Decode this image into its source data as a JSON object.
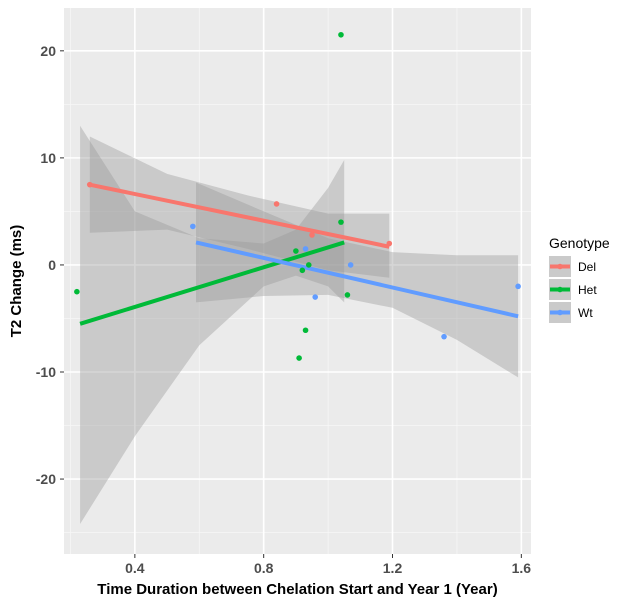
{
  "chart_data": {
    "type": "scatter",
    "title": "",
    "xlabel": "Time Duration between Chelation Start and Year 1 (Year)",
    "ylabel": "T2 Change (ms)",
    "xlim": [
      0.18,
      1.63
    ],
    "ylim": [
      -27,
      24
    ],
    "x_ticks": [
      0.4,
      0.8,
      1.2,
      1.6
    ],
    "x_tick_labels": [
      "0.4",
      "0.8",
      "1.2",
      "1.6"
    ],
    "y_ticks": [
      -20,
      -10,
      0,
      10,
      20
    ],
    "y_tick_labels": [
      "-20",
      "-10",
      "0",
      "10",
      "20"
    ],
    "grid": true,
    "legend": {
      "title": "Genotype",
      "position": "right"
    },
    "series": [
      {
        "name": "Del",
        "color": "#F8766D",
        "points": [
          [
            0.26,
            7.5
          ],
          [
            0.84,
            5.7
          ],
          [
            0.95,
            2.8
          ],
          [
            1.19,
            2.0
          ]
        ],
        "fit": {
          "x": [
            0.26,
            1.19
          ],
          "y": [
            7.5,
            1.7
          ]
        },
        "band": {
          "x": [
            0.26,
            0.5,
            0.75,
            1.0,
            1.19
          ],
          "lower": [
            3.0,
            3.3,
            1.5,
            -0.5,
            -1.2
          ],
          "upper": [
            12.0,
            8.5,
            6.5,
            4.8,
            4.8
          ]
        }
      },
      {
        "name": "Het",
        "color": "#00BA38",
        "points": [
          [
            0.22,
            -2.5
          ],
          [
            0.9,
            1.3
          ],
          [
            0.91,
            -8.7
          ],
          [
            0.92,
            -0.5
          ],
          [
            0.93,
            -6.1
          ],
          [
            0.94,
            0.0
          ],
          [
            1.04,
            21.5
          ],
          [
            1.04,
            4.0
          ],
          [
            1.06,
            -2.8
          ]
        ],
        "fit": {
          "x": [
            0.23,
            1.05
          ],
          "y": [
            -5.5,
            2.1
          ]
        },
        "band": {
          "x": [
            0.23,
            0.4,
            0.6,
            0.8,
            0.9,
            1.0,
            1.05
          ],
          "lower": [
            -24.2,
            -16.0,
            -7.5,
            -2.0,
            -1.0,
            -2.0,
            -3.5
          ],
          "upper": [
            13.0,
            5.0,
            2.5,
            2.0,
            3.3,
            7.2,
            9.8
          ]
        }
      },
      {
        "name": "Wt",
        "color": "#619CFF",
        "points": [
          [
            0.58,
            3.6
          ],
          [
            0.93,
            1.5
          ],
          [
            0.96,
            -3.0
          ],
          [
            1.07,
            0.0
          ],
          [
            1.36,
            -6.7
          ],
          [
            1.59,
            -2.0
          ]
        ],
        "fit": {
          "x": [
            0.59,
            1.59
          ],
          "y": [
            2.1,
            -4.8
          ]
        },
        "band": {
          "x": [
            0.59,
            0.8,
            1.0,
            1.2,
            1.4,
            1.59
          ],
          "lower": [
            -3.5,
            -2.9,
            -2.8,
            -4.0,
            -7.0,
            -10.5
          ],
          "upper": [
            7.7,
            5.0,
            2.5,
            1.2,
            0.9,
            0.9
          ]
        }
      }
    ]
  }
}
